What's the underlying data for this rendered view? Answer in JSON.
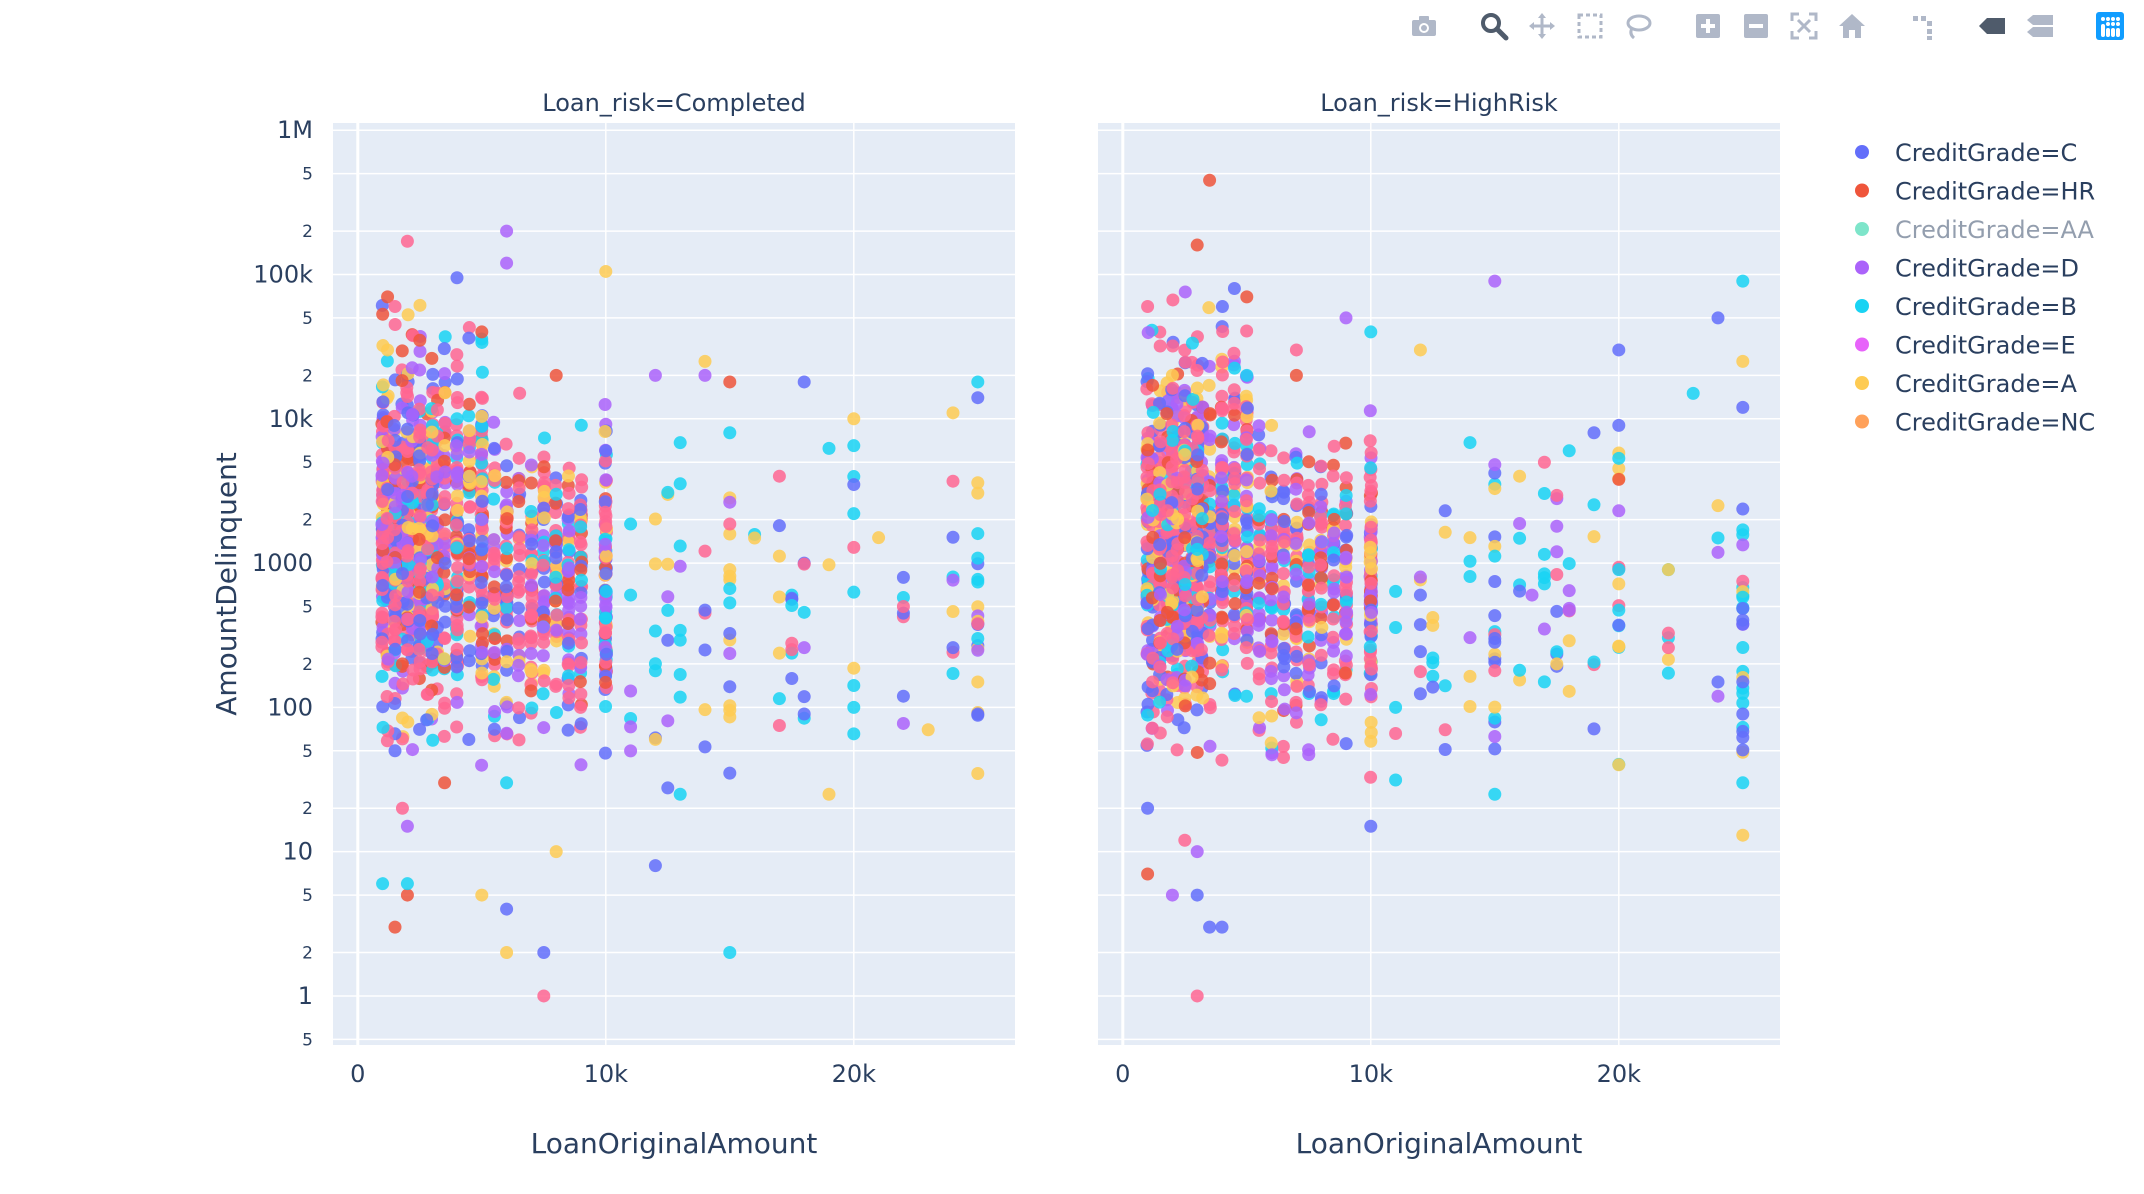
{
  "modebar": [
    {
      "name": "camera-icon"
    },
    {
      "name": "zoom-icon",
      "active": true
    },
    {
      "name": "pan-icon"
    },
    {
      "name": "box-select-icon"
    },
    {
      "name": "lasso-select-icon"
    },
    {
      "name": "zoom-in-icon"
    },
    {
      "name": "zoom-out-icon"
    },
    {
      "name": "autoscale-icon"
    },
    {
      "name": "reset-axes-icon"
    },
    {
      "name": "spike-lines-icon"
    },
    {
      "name": "hover-closest-icon"
    },
    {
      "name": "hover-compare-icon"
    },
    {
      "name": "plotly-logo-icon"
    }
  ],
  "chart_data": {
    "type": "scatter",
    "facet_label": "Loan_risk",
    "facets": [
      {
        "title": "Loan_risk=Completed"
      },
      {
        "title": "Loan_risk=HighRisk"
      }
    ],
    "xlabel": "LoanOriginalAmount",
    "ylabel": "AmountDelinquent",
    "xlim": [
      -1000,
      26500
    ],
    "ylim_log10": [
      -0.34,
      6.05
    ],
    "yscale": "log",
    "x_ticks": [
      {
        "value": 0,
        "label": "0"
      },
      {
        "value": 10000,
        "label": "10k"
      },
      {
        "value": 20000,
        "label": "20k"
      }
    ],
    "y_major_ticks": [
      {
        "value": 1,
        "label": "1"
      },
      {
        "value": 10,
        "label": "10"
      },
      {
        "value": 100,
        "label": "100"
      },
      {
        "value": 1000,
        "label": "1000"
      },
      {
        "value": 10000,
        "label": "10k"
      },
      {
        "value": 100000,
        "label": "100k"
      },
      {
        "value": 1000000,
        "label": "1M"
      }
    ],
    "y_minor_ticks": [
      {
        "value": 0.5,
        "label": "5"
      },
      {
        "value": 2,
        "label": "2"
      },
      {
        "value": 5,
        "label": "5"
      },
      {
        "value": 20,
        "label": "2"
      },
      {
        "value": 50,
        "label": "5"
      },
      {
        "value": 200,
        "label": "2"
      },
      {
        "value": 500,
        "label": "5"
      },
      {
        "value": 2000,
        "label": "2"
      },
      {
        "value": 5000,
        "label": "5"
      },
      {
        "value": 20000,
        "label": "2"
      },
      {
        "value": 50000,
        "label": "5"
      },
      {
        "value": 200000,
        "label": "2"
      },
      {
        "value": 500000,
        "label": "5"
      }
    ],
    "grid": true,
    "legend_position": "right",
    "series": [
      {
        "name": "CreditGrade=C",
        "color": "#636efa"
      },
      {
        "name": "CreditGrade=HR",
        "color": "#EF553B"
      },
      {
        "name": "CreditGrade=AA",
        "color": "#00cc96",
        "hidden": true
      },
      {
        "name": "CreditGrade=D",
        "color": "#ab63fa"
      },
      {
        "name": "CreditGrade=B",
        "color": "#19d3f3"
      },
      {
        "name": "CreditGrade=E",
        "color": "#FF6692"
      },
      {
        "name": "CreditGrade=A",
        "color": "#FECB52"
      },
      {
        "name": "CreditGrade=NC",
        "color": "#FFA15A"
      }
    ],
    "points": [
      [
        0,
        0,
        1000,
        700
      ],
      [
        0,
        0,
        2500,
        400
      ],
      [
        0,
        0,
        4000,
        95000
      ],
      [
        0,
        0,
        7500,
        2
      ],
      [
        0,
        0,
        12000,
        8
      ],
      [
        0,
        0,
        15000,
        35
      ],
      [
        0,
        0,
        18000,
        18000
      ],
      [
        0,
        0,
        18000,
        90
      ],
      [
        0,
        0,
        20000,
        3500
      ],
      [
        0,
        0,
        25000,
        14000
      ],
      [
        0,
        0,
        25000,
        90
      ],
      [
        0,
        0,
        10000,
        6000
      ],
      [
        0,
        0,
        8000,
        1200
      ],
      [
        0,
        0,
        6000,
        4
      ],
      [
        0,
        0,
        3000,
        3000
      ],
      [
        0,
        0,
        1500,
        50
      ],
      [
        0,
        0,
        14000,
        250
      ],
      [
        0,
        0,
        22000,
        450
      ],
      [
        0,
        1,
        1500,
        3
      ],
      [
        0,
        1,
        2000,
        5
      ],
      [
        0,
        1,
        1200,
        70000
      ],
      [
        0,
        1,
        2500,
        35000
      ],
      [
        0,
        1,
        5000,
        40000
      ],
      [
        0,
        1,
        8000,
        20000
      ],
      [
        0,
        1,
        1800,
        200
      ],
      [
        0,
        1,
        3500,
        30
      ],
      [
        0,
        1,
        15000,
        18000
      ],
      [
        0,
        3,
        6000,
        200000
      ],
      [
        0,
        3,
        6000,
        120000
      ],
      [
        0,
        3,
        5000,
        2000
      ],
      [
        0,
        3,
        12000,
        20000
      ],
      [
        0,
        3,
        14000,
        20000
      ],
      [
        0,
        3,
        7000,
        700
      ],
      [
        0,
        3,
        2000,
        15
      ],
      [
        0,
        3,
        9000,
        40
      ],
      [
        0,
        3,
        3000,
        800
      ],
      [
        0,
        4,
        25000,
        18000
      ],
      [
        0,
        4,
        20000,
        100
      ],
      [
        0,
        4,
        15000,
        2
      ],
      [
        0,
        4,
        13000,
        25
      ],
      [
        0,
        4,
        11000,
        600
      ],
      [
        0,
        4,
        8000,
        3000
      ],
      [
        0,
        4,
        1000,
        6
      ],
      [
        0,
        4,
        2000,
        6
      ],
      [
        0,
        4,
        20000,
        2200
      ],
      [
        0,
        4,
        15000,
        8000
      ],
      [
        0,
        4,
        25000,
        300
      ],
      [
        0,
        4,
        6000,
        30
      ],
      [
        0,
        4,
        4000,
        10000
      ],
      [
        0,
        5,
        2000,
        170000
      ],
      [
        0,
        5,
        7500,
        1
      ],
      [
        0,
        5,
        1500,
        60000
      ],
      [
        0,
        5,
        17000,
        4000
      ],
      [
        0,
        5,
        22000,
        500
      ],
      [
        0,
        5,
        3000,
        600
      ],
      [
        0,
        5,
        2500,
        8000
      ],
      [
        0,
        5,
        1200,
        1500
      ],
      [
        0,
        5,
        25000,
        380
      ],
      [
        0,
        5,
        1800,
        20
      ],
      [
        0,
        6,
        10000,
        105000
      ],
      [
        0,
        6,
        6000,
        2
      ],
      [
        0,
        6,
        5000,
        5
      ],
      [
        0,
        6,
        8000,
        10
      ],
      [
        0,
        6,
        19000,
        25
      ],
      [
        0,
        6,
        24000,
        11000
      ],
      [
        0,
        6,
        25000,
        150
      ],
      [
        0,
        6,
        20000,
        10000
      ],
      [
        0,
        6,
        14000,
        25000
      ],
      [
        0,
        6,
        21000,
        1500
      ],
      [
        0,
        6,
        1200,
        30000
      ],
      [
        0,
        6,
        4500,
        4000
      ],
      [
        0,
        6,
        12000,
        60
      ],
      [
        0,
        6,
        23000,
        70
      ],
      [
        1,
        0,
        3500,
        3
      ],
      [
        1,
        0,
        4000,
        3
      ],
      [
        1,
        0,
        10000,
        15
      ],
      [
        1,
        0,
        20000,
        30000
      ],
      [
        1,
        0,
        24000,
        50000
      ],
      [
        1,
        0,
        25000,
        12000
      ],
      [
        1,
        0,
        20000,
        9000
      ],
      [
        1,
        0,
        19000,
        8000
      ],
      [
        1,
        0,
        25000,
        90
      ],
      [
        1,
        0,
        24000,
        150
      ],
      [
        1,
        0,
        1000,
        20
      ],
      [
        1,
        0,
        3000,
        5
      ],
      [
        1,
        0,
        15000,
        300
      ],
      [
        1,
        0,
        8000,
        3000
      ],
      [
        1,
        0,
        12000,
        600
      ],
      [
        1,
        0,
        4500,
        80000
      ],
      [
        1,
        1,
        1000,
        7
      ],
      [
        1,
        1,
        3500,
        450000
      ],
      [
        1,
        1,
        3000,
        160000
      ],
      [
        1,
        1,
        20000,
        3800
      ],
      [
        1,
        1,
        7000,
        20000
      ],
      [
        1,
        1,
        2500,
        1500
      ],
      [
        1,
        1,
        1500,
        400
      ],
      [
        1,
        1,
        5000,
        70000
      ],
      [
        1,
        3,
        15000,
        90000
      ],
      [
        1,
        3,
        17500,
        1800
      ],
      [
        1,
        3,
        3000,
        10
      ],
      [
        1,
        3,
        2000,
        5
      ],
      [
        1,
        3,
        6000,
        2000
      ],
      [
        1,
        3,
        9000,
        50000
      ],
      [
        1,
        3,
        12000,
        800
      ],
      [
        1,
        3,
        16500,
        600
      ],
      [
        1,
        4,
        25000,
        90000
      ],
      [
        1,
        4,
        23000,
        15000
      ],
      [
        1,
        4,
        25000,
        30
      ],
      [
        1,
        4,
        22000,
        900
      ],
      [
        1,
        4,
        15000,
        25
      ],
      [
        1,
        4,
        20000,
        900
      ],
      [
        1,
        4,
        5000,
        20000
      ],
      [
        1,
        4,
        11000,
        100
      ],
      [
        1,
        4,
        18000,
        6000
      ],
      [
        1,
        4,
        10000,
        40000
      ],
      [
        1,
        4,
        1500,
        3000
      ],
      [
        1,
        5,
        3000,
        1
      ],
      [
        1,
        5,
        1000,
        60000
      ],
      [
        1,
        5,
        17000,
        5000
      ],
      [
        1,
        5,
        2000,
        800
      ],
      [
        1,
        5,
        7000,
        30000
      ],
      [
        1,
        5,
        13000,
        70
      ],
      [
        1,
        5,
        1200,
        150
      ],
      [
        1,
        5,
        2500,
        12
      ],
      [
        1,
        6,
        25000,
        13
      ],
      [
        1,
        6,
        20000,
        40
      ],
      [
        1,
        6,
        22000,
        900
      ],
      [
        1,
        6,
        12000,
        30000
      ],
      [
        1,
        6,
        25000,
        25000
      ],
      [
        1,
        6,
        17500,
        200
      ],
      [
        1,
        6,
        24000,
        2500
      ],
      [
        1,
        6,
        16000,
        4000
      ],
      [
        1,
        6,
        6000,
        9000
      ],
      [
        1,
        6,
        2000,
        20000
      ],
      [
        1,
        6,
        14000,
        1500
      ]
    ]
  }
}
